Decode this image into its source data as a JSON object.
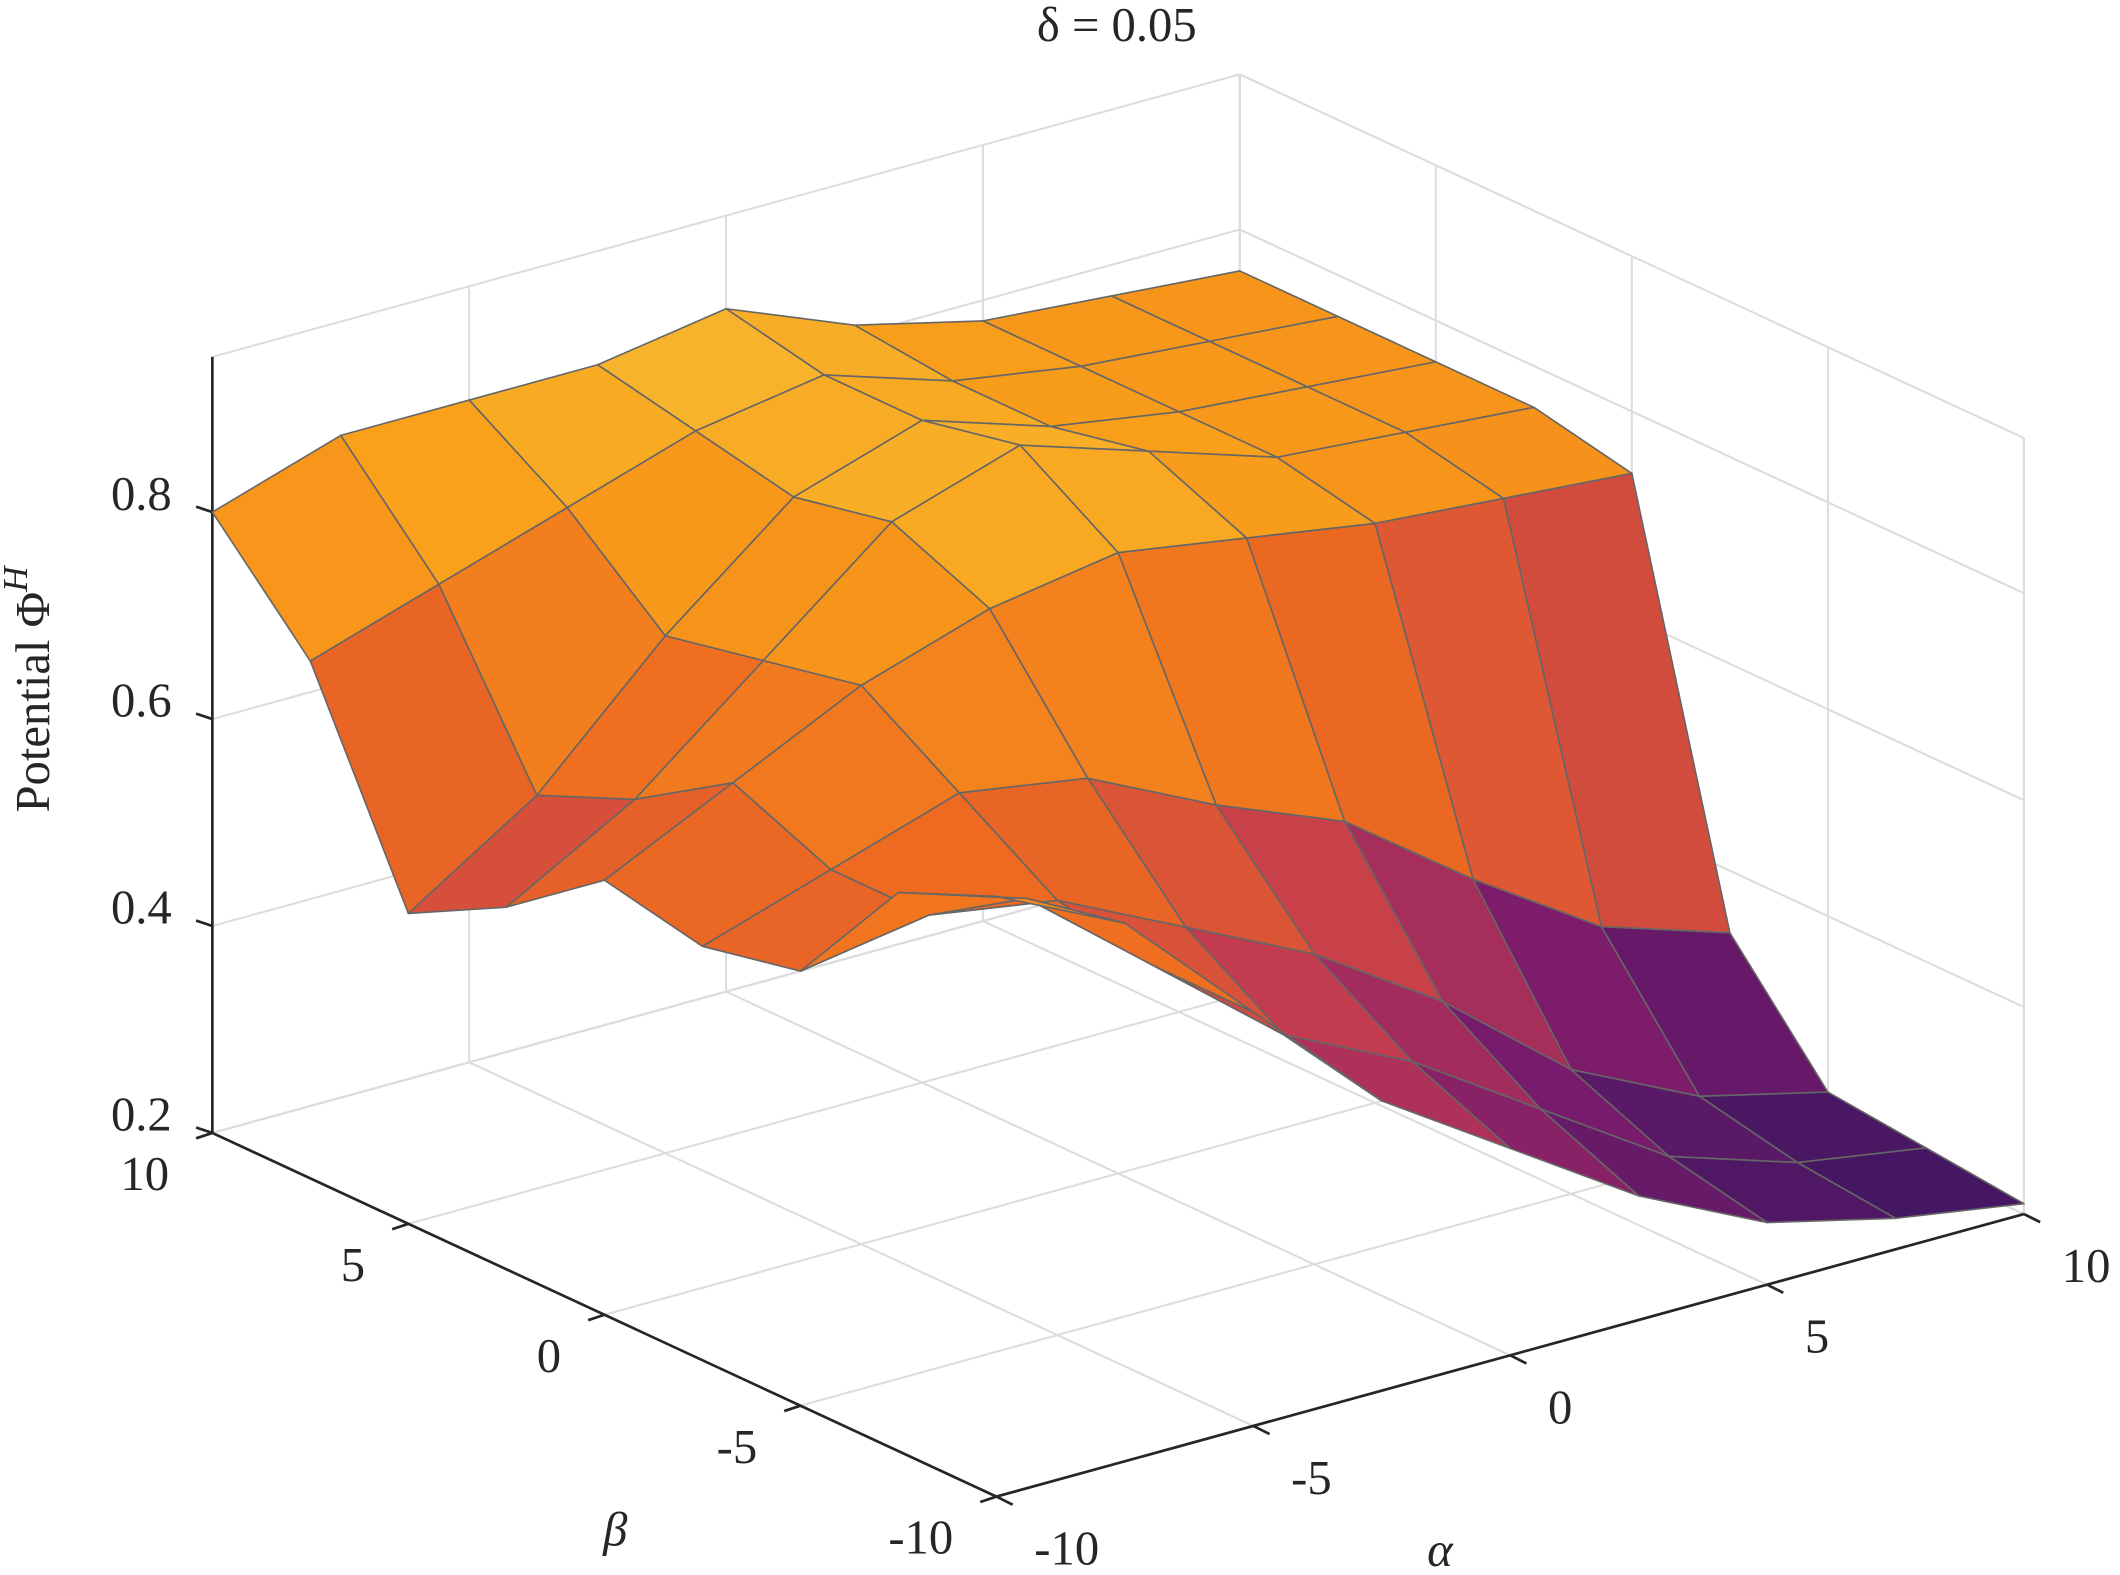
{
  "chart_data": {
    "type": "surface",
    "title": "δ = 0.05",
    "xlabel": "α",
    "ylabel": "β",
    "zlabel": "Potential Φ",
    "zlabel_superscript": "H",
    "x": [
      -10,
      -7.5,
      -5,
      -2.5,
      0,
      2.5,
      5,
      7.5,
      10
    ],
    "y": [
      -10,
      -7.5,
      -5,
      -2.5,
      0,
      2.5,
      5,
      7.5,
      10
    ],
    "z": [
      [
        0.78,
        0.72,
        0.6,
        0.48,
        0.4,
        0.32,
        0.26,
        0.23,
        0.21
      ],
      [
        0.74,
        0.7,
        0.6,
        0.5,
        0.44,
        0.36,
        0.28,
        0.24,
        0.22
      ],
      [
        0.62,
        0.64,
        0.62,
        0.56,
        0.5,
        0.42,
        0.32,
        0.26,
        0.23
      ],
      [
        0.6,
        0.64,
        0.68,
        0.66,
        0.6,
        0.55,
        0.46,
        0.38,
        0.34
      ],
      [
        0.62,
        0.68,
        0.74,
        0.78,
        0.8,
        0.78,
        0.76,
        0.75,
        0.74
      ],
      [
        0.55,
        0.62,
        0.72,
        0.82,
        0.86,
        0.82,
        0.78,
        0.77,
        0.76
      ],
      [
        0.5,
        0.58,
        0.7,
        0.8,
        0.84,
        0.8,
        0.78,
        0.77,
        0.76
      ],
      [
        0.7,
        0.74,
        0.78,
        0.82,
        0.84,
        0.8,
        0.78,
        0.77,
        0.76
      ],
      [
        0.8,
        0.84,
        0.84,
        0.84,
        0.86,
        0.81,
        0.78,
        0.77,
        0.76
      ]
    ],
    "xlim": [
      -10,
      10
    ],
    "ylim": [
      -10,
      10
    ],
    "zlim": [
      0.2,
      0.95
    ],
    "xticks": [
      -10,
      -5,
      0,
      5,
      10
    ],
    "yticks": [
      -10,
      -5,
      0,
      5,
      10
    ],
    "zticks": [
      0.2,
      0.4,
      0.6,
      0.8
    ],
    "grid": true,
    "edge_color": "#666666",
    "colormap": [
      "#3a1660",
      "#7a1b6c",
      "#c33b4f",
      "#ef6c1f",
      "#f9a11a",
      "#f2e35c"
    ]
  }
}
